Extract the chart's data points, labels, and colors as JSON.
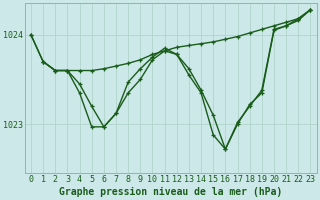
{
  "background_color": "#cce8e8",
  "plot_bg_color": "#cce8e8",
  "grid_color": "#b0d4cc",
  "line_color": "#1a5c1a",
  "title": "Graphe pression niveau de la mer (hPa)",
  "xlim": [
    -0.5,
    23.5
  ],
  "ylim": [
    1022.45,
    1024.35
  ],
  "yticks": [
    1023,
    1024
  ],
  "xticks": [
    0,
    1,
    2,
    3,
    4,
    5,
    6,
    7,
    8,
    9,
    10,
    11,
    12,
    13,
    14,
    15,
    16,
    17,
    18,
    19,
    20,
    21,
    22,
    23
  ],
  "line1_x": [
    0,
    1,
    2,
    3,
    4,
    5,
    6,
    7,
    8,
    9,
    10,
    11,
    12,
    13,
    14,
    15,
    16,
    17,
    18,
    19,
    20,
    21,
    22,
    23
  ],
  "line1_y": [
    1024.0,
    1023.7,
    1023.6,
    1023.6,
    1023.6,
    1023.6,
    1023.62,
    1023.65,
    1023.68,
    1023.72,
    1023.78,
    1023.82,
    1023.86,
    1023.88,
    1023.9,
    1023.92,
    1023.95,
    1023.98,
    1024.02,
    1024.06,
    1024.1,
    1024.14,
    1024.18,
    1024.28
  ],
  "line2_x": [
    0,
    1,
    2,
    3,
    4,
    5,
    6,
    7,
    8,
    9,
    10,
    11,
    12,
    13,
    14,
    15,
    16,
    17,
    18,
    19,
    20,
    21,
    22,
    23
  ],
  "line2_y": [
    1024.0,
    1023.7,
    1023.6,
    1023.6,
    1023.35,
    1022.97,
    1022.97,
    1023.12,
    1023.47,
    1023.62,
    1023.75,
    1023.85,
    1023.78,
    1023.55,
    1023.35,
    1022.88,
    1022.72,
    1023.0,
    1023.22,
    1023.35,
    1024.05,
    1024.1,
    1024.16,
    1024.28
  ],
  "line3_x": [
    1,
    2,
    3,
    4,
    5,
    6,
    7,
    8,
    9,
    10,
    11,
    12,
    13,
    14,
    15,
    16,
    17,
    18,
    19,
    20,
    21,
    22,
    23
  ],
  "line3_y": [
    1023.7,
    1023.6,
    1023.6,
    1023.45,
    1023.2,
    1022.97,
    1023.12,
    1023.35,
    1023.5,
    1023.72,
    1023.82,
    1023.78,
    1023.62,
    1023.38,
    1023.1,
    1022.72,
    1023.02,
    1023.2,
    1023.38,
    1024.06,
    1024.1,
    1024.18,
    1024.28
  ],
  "title_fontsize": 7,
  "tick_fontsize": 6,
  "linewidth": 1.0,
  "markersize": 3.5
}
